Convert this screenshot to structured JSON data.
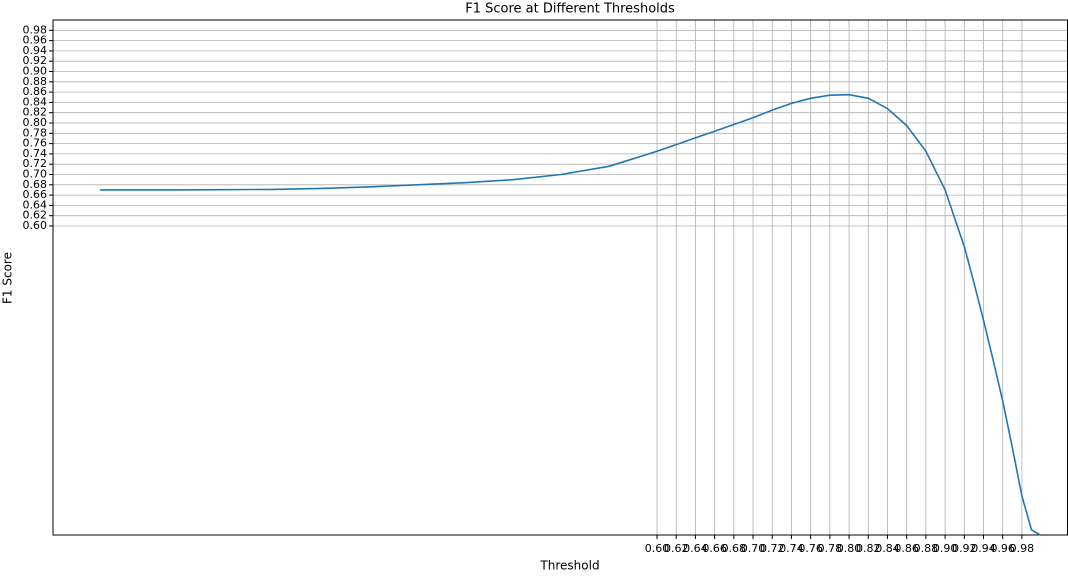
{
  "chart_data": {
    "type": "line",
    "title": "F1 Score at Different Thresholds",
    "x_label": "Threshold",
    "y_label": "F1 Score",
    "x": [
      0.02,
      0.1,
      0.2,
      0.25,
      0.3,
      0.35,
      0.4,
      0.45,
      0.5,
      0.55,
      0.6,
      0.62,
      0.64,
      0.66,
      0.68,
      0.7,
      0.72,
      0.74,
      0.76,
      0.78,
      0.8,
      0.82,
      0.84,
      0.86,
      0.88,
      0.9,
      0.92,
      0.93,
      0.94,
      0.95,
      0.96,
      0.97,
      0.98,
      0.99,
      0.999
    ],
    "series": [
      {
        "name": "F1 Score",
        "color": "#1f77b4",
        "values": [
          0.67,
          0.67,
          0.671,
          0.673,
          0.676,
          0.68,
          0.684,
          0.69,
          0.7,
          0.716,
          0.745,
          0.758,
          0.771,
          0.784,
          0.797,
          0.81,
          0.825,
          0.838,
          0.848,
          0.854,
          0.855,
          0.848,
          0.828,
          0.795,
          0.745,
          0.67,
          0.56,
          0.49,
          0.417,
          0.34,
          0.26,
          0.17,
          0.076,
          0.01,
          0.0
        ]
      }
    ],
    "xlim": [
      -0.029,
      1.028
    ],
    "ylim": [
      0.0,
      1.0
    ],
    "grid": true,
    "xticks": [
      {
        "value": 0.6,
        "label": "0.60"
      },
      {
        "value": 0.62,
        "label": "0.62"
      },
      {
        "value": 0.64,
        "label": "0.64"
      },
      {
        "value": 0.66,
        "label": "0.66"
      },
      {
        "value": 0.68,
        "label": "0.68"
      },
      {
        "value": 0.7,
        "label": "0.70"
      },
      {
        "value": 0.72,
        "label": "0.72"
      },
      {
        "value": 0.74,
        "label": "0.74"
      },
      {
        "value": 0.76,
        "label": "0.76"
      },
      {
        "value": 0.78,
        "label": "0.78"
      },
      {
        "value": 0.8,
        "label": "0.80"
      },
      {
        "value": 0.82,
        "label": "0.82"
      },
      {
        "value": 0.84,
        "label": "0.84"
      },
      {
        "value": 0.86,
        "label": "0.86"
      },
      {
        "value": 0.88,
        "label": "0.88"
      },
      {
        "value": 0.9,
        "label": "0.90"
      },
      {
        "value": 0.92,
        "label": "0.92"
      },
      {
        "value": 0.94,
        "label": "0.94"
      },
      {
        "value": 0.96,
        "label": "0.96"
      },
      {
        "value": 0.98,
        "label": "0.98"
      }
    ],
    "yticks": [
      {
        "value": 0.6,
        "label": "0.60"
      },
      {
        "value": 0.62,
        "label": "0.62"
      },
      {
        "value": 0.64,
        "label": "0.64"
      },
      {
        "value": 0.66,
        "label": "0.66"
      },
      {
        "value": 0.68,
        "label": "0.68"
      },
      {
        "value": 0.7,
        "label": "0.70"
      },
      {
        "value": 0.72,
        "label": "0.72"
      },
      {
        "value": 0.74,
        "label": "0.74"
      },
      {
        "value": 0.76,
        "label": "0.76"
      },
      {
        "value": 0.78,
        "label": "0.78"
      },
      {
        "value": 0.8,
        "label": "0.80"
      },
      {
        "value": 0.82,
        "label": "0.82"
      },
      {
        "value": 0.84,
        "label": "0.84"
      },
      {
        "value": 0.86,
        "label": "0.86"
      },
      {
        "value": 0.88,
        "label": "0.88"
      },
      {
        "value": 0.9,
        "label": "0.90"
      },
      {
        "value": 0.92,
        "label": "0.92"
      },
      {
        "value": 0.94,
        "label": "0.94"
      },
      {
        "value": 0.96,
        "label": "0.96"
      },
      {
        "value": 0.98,
        "label": "0.98"
      }
    ]
  }
}
